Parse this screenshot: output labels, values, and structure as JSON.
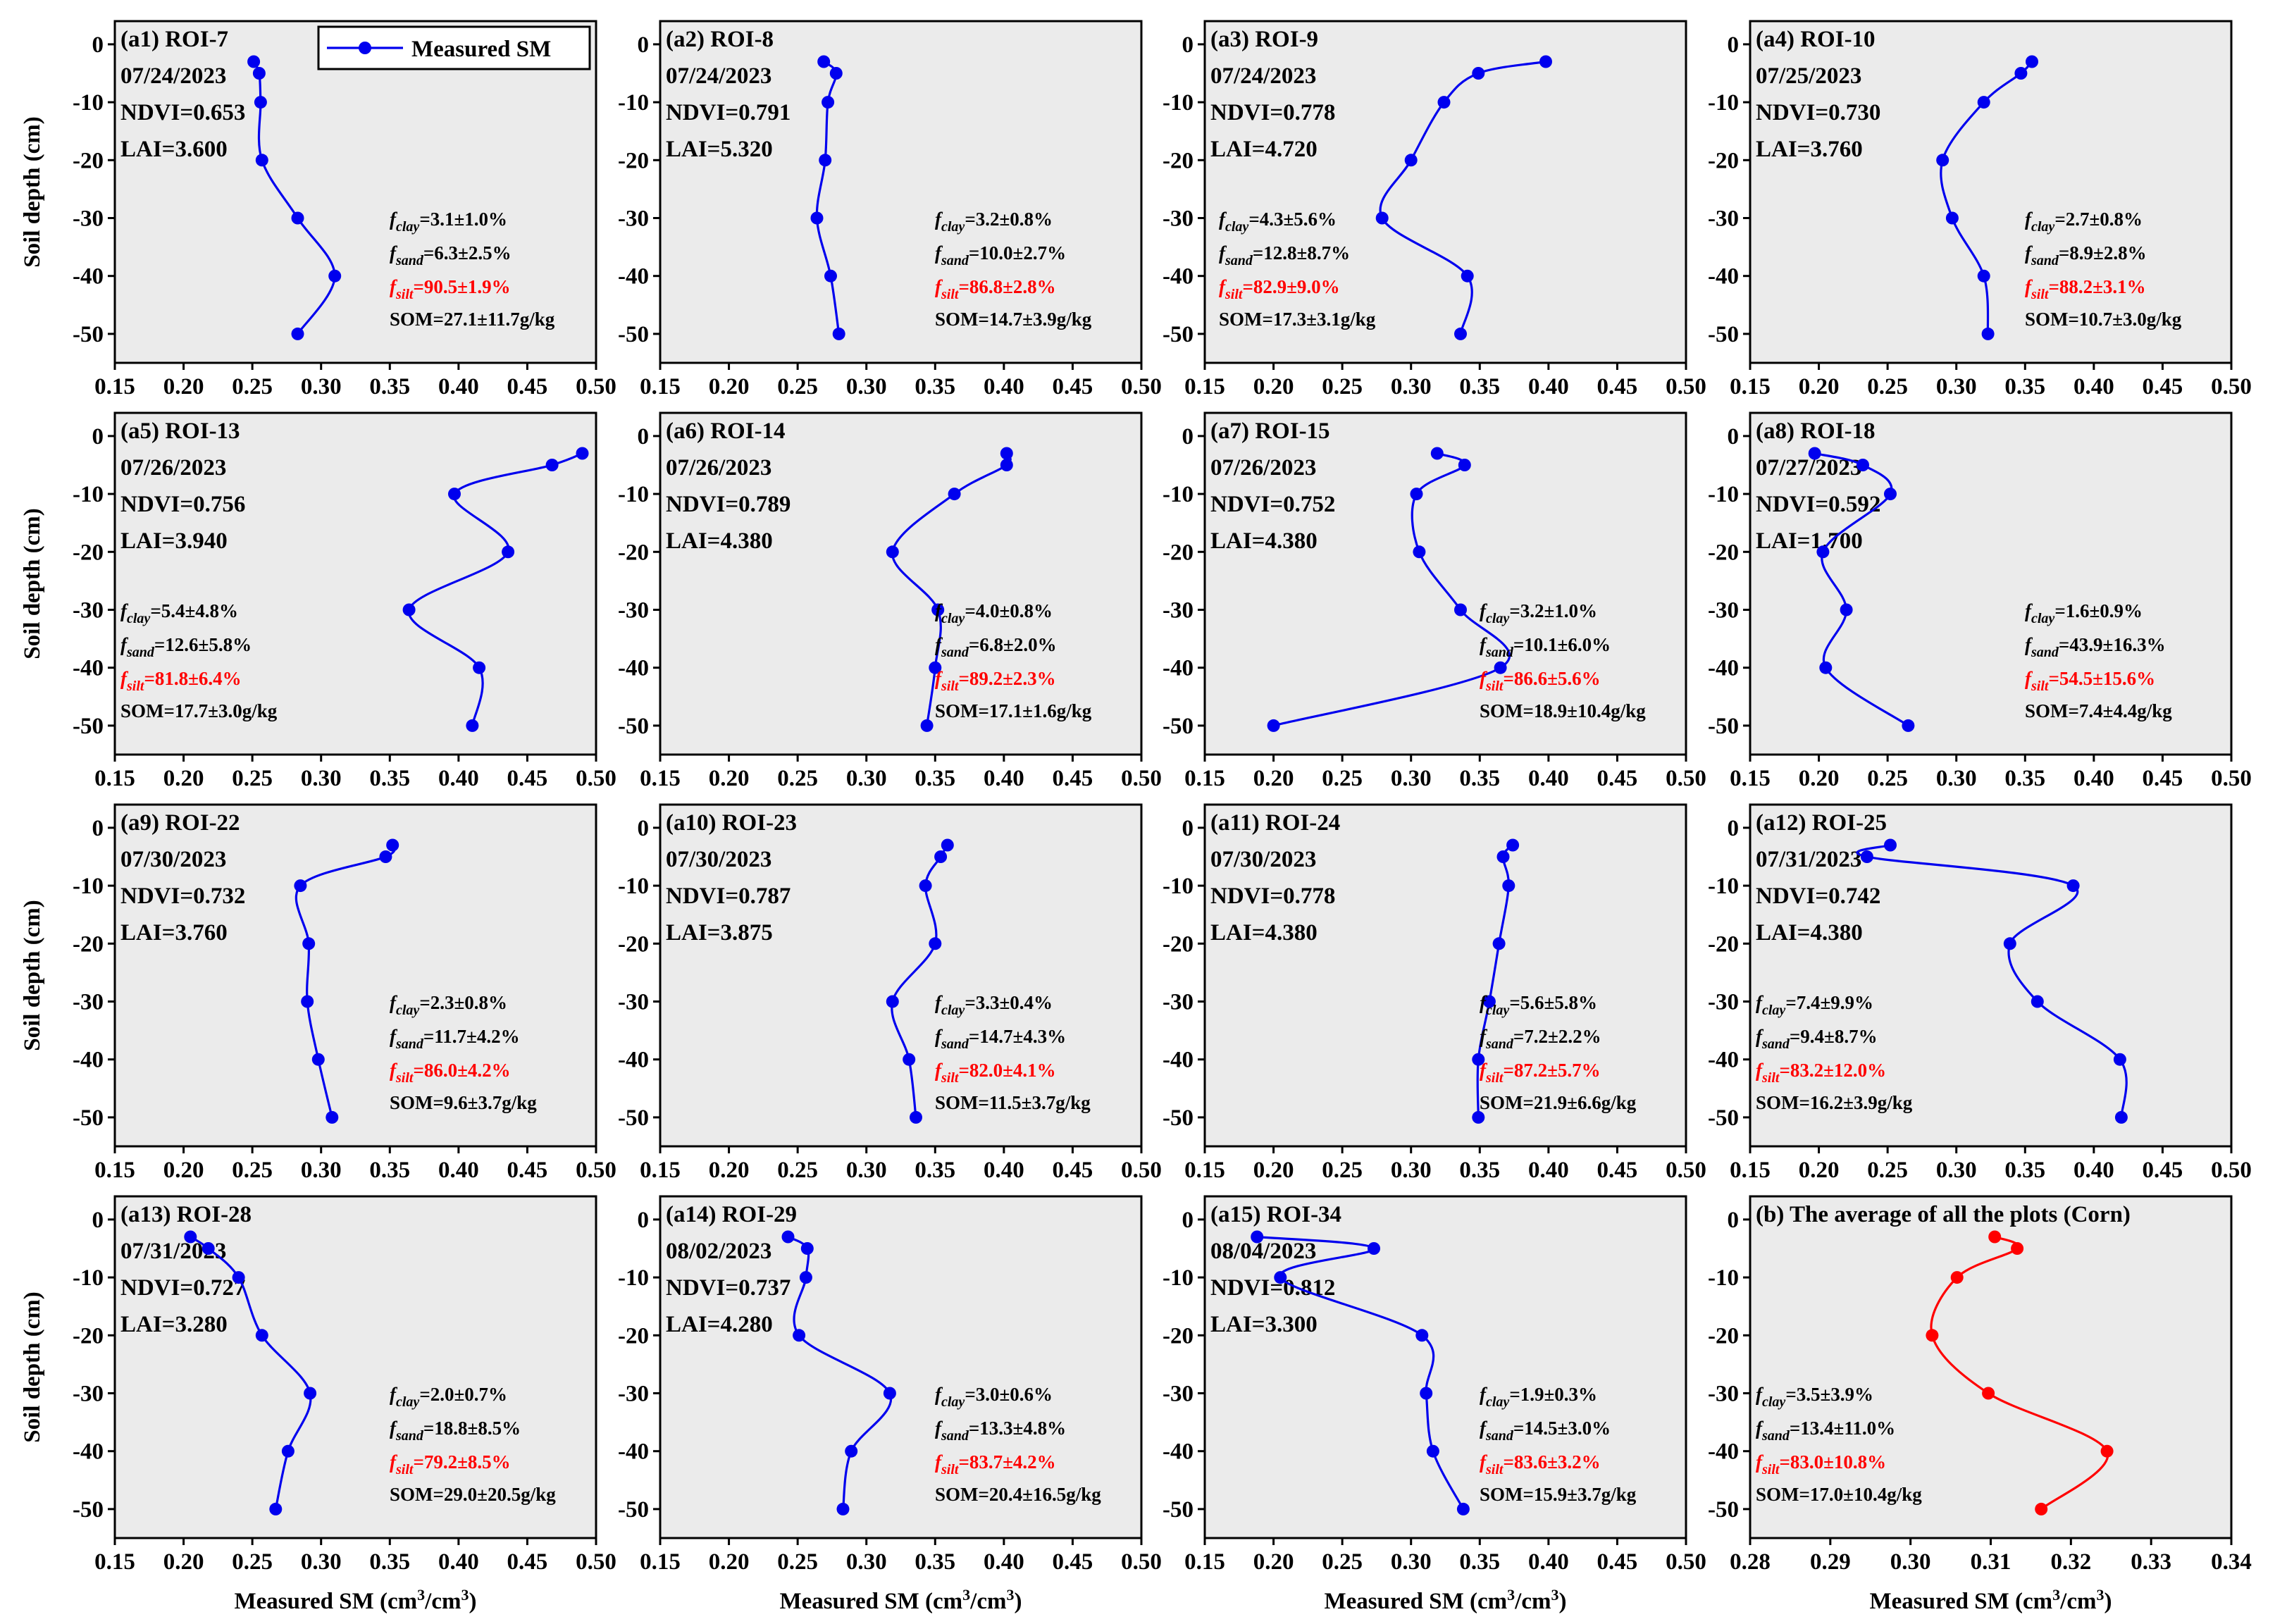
{
  "legend": {
    "label": "Measured SM"
  },
  "axis_labels": {
    "ylabel": "Soil depth (cm)",
    "xlabel_text": "Measured  SM (cm",
    "xlabel_sup1": "3",
    "xlabel_mid": "/cm",
    "xlabel_sup2": "3",
    "xlabel_end": ")"
  },
  "colors": {
    "series": "#0000ee",
    "average": "#ff0000",
    "frame": "#000000",
    "plot_bg": "#ebebeb",
    "highlight": "#ff0000"
  },
  "chart_data": [
    {
      "type": "line",
      "panel": "(a1) ROI-7",
      "date": "07/24/2023",
      "ndvi": "NDVI=0.653",
      "lai": "LAI=3.600",
      "xlim": [
        0.15,
        0.5
      ],
      "ylim": [
        -55,
        4
      ],
      "x_ticks": [
        "0.15",
        "0.20",
        "0.25",
        "0.30",
        "0.35",
        "0.40",
        "0.45",
        "0.50"
      ],
      "y_ticks": [
        "0",
        "-10",
        "-20",
        "-30",
        "-40",
        "-50"
      ],
      "ylabel": "Soil depth (cm)",
      "series": [
        {
          "name": "Measured SM",
          "x": [
            0.251,
            0.255,
            0.256,
            0.257,
            0.283,
            0.31,
            0.283
          ],
          "y": [
            -3,
            -5,
            -10,
            -20,
            -30,
            -40,
            -50
          ]
        }
      ],
      "clay": "=3.1±1.0%",
      "sand": "=6.3±2.5%",
      "silt": "=90.5±1.9%",
      "som": "SOM=27.1±11.7g/kg"
    },
    {
      "type": "line",
      "panel": "(a2) ROI-8",
      "date": "07/24/2023",
      "ndvi": "NDVI=0.791",
      "lai": "LAI=5.320",
      "xlim": [
        0.15,
        0.5
      ],
      "ylim": [
        -55,
        4
      ],
      "x_ticks": [
        "0.15",
        "0.20",
        "0.25",
        "0.30",
        "0.35",
        "0.40",
        "0.45",
        "0.50"
      ],
      "y_ticks": [
        "0",
        "-10",
        "-20",
        "-30",
        "-40",
        "-50"
      ],
      "series": [
        {
          "name": "Measured SM",
          "x": [
            0.269,
            0.278,
            0.272,
            0.27,
            0.264,
            0.274,
            0.28
          ],
          "y": [
            -3,
            -5,
            -10,
            -20,
            -30,
            -40,
            -50
          ]
        }
      ],
      "clay": "=3.2±0.8%",
      "sand": "=10.0±2.7%",
      "silt": "=86.8±2.8%",
      "som": "SOM=14.7±3.9g/kg"
    },
    {
      "type": "line",
      "panel": "(a3) ROI-9",
      "date": "07/24/2023",
      "ndvi": "NDVI=0.778",
      "lai": "LAI=4.720",
      "xlim": [
        0.15,
        0.5
      ],
      "ylim": [
        -55,
        4
      ],
      "x_ticks": [
        "0.15",
        "0.20",
        "0.25",
        "0.30",
        "0.35",
        "0.40",
        "0.45",
        "0.50"
      ],
      "y_ticks": [
        "0",
        "-10",
        "-20",
        "-30",
        "-40",
        "-50"
      ],
      "series": [
        {
          "name": "Measured SM",
          "x": [
            0.398,
            0.349,
            0.324,
            0.3,
            0.279,
            0.341,
            0.336
          ],
          "y": [
            -3,
            -5,
            -10,
            -20,
            -30,
            -40,
            -50
          ]
        }
      ],
      "clay": "=4.3±5.6%",
      "sand": "=12.8±8.7%",
      "silt": "=82.9±9.0%",
      "som": "SOM=17.3±3.1g/kg"
    },
    {
      "type": "line",
      "panel": "(a4) ROI-10",
      "date": "07/25/2023",
      "ndvi": "NDVI=0.730",
      "lai": "LAI=3.760",
      "xlim": [
        0.15,
        0.5
      ],
      "ylim": [
        -55,
        4
      ],
      "x_ticks": [
        "0.15",
        "0.20",
        "0.25",
        "0.30",
        "0.35",
        "0.40",
        "0.45",
        "0.50"
      ],
      "y_ticks": [
        "0",
        "-10",
        "-20",
        "-30",
        "-40",
        "-50"
      ],
      "series": [
        {
          "name": "Measured SM",
          "x": [
            0.355,
            0.347,
            0.32,
            0.29,
            0.297,
            0.32,
            0.323
          ],
          "y": [
            -3,
            -5,
            -10,
            -20,
            -30,
            -40,
            -50
          ]
        }
      ],
      "clay": "=2.7±0.8%",
      "sand": "=8.9±2.8%",
      "silt": "=88.2±3.1%",
      "som": "SOM=10.7±3.0g/kg"
    },
    {
      "type": "line",
      "panel": "(a5) ROI-13",
      "date": "07/26/2023",
      "ndvi": "NDVI=0.756",
      "lai": "LAI=3.940",
      "xlim": [
        0.15,
        0.5
      ],
      "ylim": [
        -55,
        4
      ],
      "x_ticks": [
        "0.15",
        "0.20",
        "0.25",
        "0.30",
        "0.35",
        "0.40",
        "0.45",
        "0.50"
      ],
      "y_ticks": [
        "0",
        "-10",
        "-20",
        "-30",
        "-40",
        "-50"
      ],
      "ylabel": "Soil depth (cm)",
      "series": [
        {
          "name": "Measured SM",
          "x": [
            0.49,
            0.468,
            0.397,
            0.436,
            0.364,
            0.415,
            0.41
          ],
          "y": [
            -3,
            -5,
            -10,
            -20,
            -30,
            -40,
            -50
          ]
        }
      ],
      "clay": "=5.4±4.8%",
      "sand": "=12.6±5.8%",
      "silt": "=81.8±6.4%",
      "som": "SOM=17.7±3.0g/kg"
    },
    {
      "type": "line",
      "panel": "(a6) ROI-14",
      "date": "07/26/2023",
      "ndvi": "NDVI=0.789",
      "lai": "LAI=4.380",
      "xlim": [
        0.15,
        0.5
      ],
      "ylim": [
        -55,
        4
      ],
      "x_ticks": [
        "0.15",
        "0.20",
        "0.25",
        "0.30",
        "0.35",
        "0.40",
        "0.45",
        "0.50"
      ],
      "y_ticks": [
        "0",
        "-10",
        "-20",
        "-30",
        "-40",
        "-50"
      ],
      "series": [
        {
          "name": "Measured SM",
          "x": [
            0.402,
            0.402,
            0.364,
            0.319,
            0.352,
            0.35,
            0.344
          ],
          "y": [
            -3,
            -5,
            -10,
            -20,
            -30,
            -40,
            -50
          ]
        }
      ],
      "clay": "=4.0±0.8%",
      "sand": "=6.8±2.0%",
      "silt": "=89.2±2.3%",
      "som": "SOM=17.1±1.6g/kg"
    },
    {
      "type": "line",
      "panel": "(a7) ROI-15",
      "date": "07/26/2023",
      "ndvi": "NDVI=0.752",
      "lai": "LAI=4.380",
      "xlim": [
        0.15,
        0.5
      ],
      "ylim": [
        -55,
        4
      ],
      "x_ticks": [
        "0.15",
        "0.20",
        "0.25",
        "0.30",
        "0.35",
        "0.40",
        "0.45",
        "0.50"
      ],
      "y_ticks": [
        "0",
        "-10",
        "-20",
        "-30",
        "-40",
        "-50"
      ],
      "series": [
        {
          "name": "Measured SM",
          "x": [
            0.319,
            0.339,
            0.304,
            0.306,
            0.336,
            0.365,
            0.2
          ],
          "y": [
            -3,
            -5,
            -10,
            -20,
            -30,
            -40,
            -50
          ]
        }
      ],
      "clay": "=3.2±1.0%",
      "sand": "=10.1±6.0%",
      "silt": "=86.6±5.6%",
      "som": "SOM=18.9±10.4g/kg"
    },
    {
      "type": "line",
      "panel": "(a8) ROI-18",
      "date": "07/27/2023",
      "ndvi": "NDVI=0.592",
      "lai": "LAI=1.700",
      "xlim": [
        0.15,
        0.5
      ],
      "ylim": [
        -55,
        4
      ],
      "x_ticks": [
        "0.15",
        "0.20",
        "0.25",
        "0.30",
        "0.35",
        "0.40",
        "0.45",
        "0.50"
      ],
      "y_ticks": [
        "0",
        "-10",
        "-20",
        "-30",
        "-40",
        "-50"
      ],
      "series": [
        {
          "name": "Measured SM",
          "x": [
            0.197,
            0.232,
            0.252,
            0.203,
            0.22,
            0.205,
            0.265
          ],
          "y": [
            -3,
            -5,
            -10,
            -20,
            -30,
            -40,
            -50
          ]
        }
      ],
      "clay": "=1.6±0.9%",
      "sand": "=43.9±16.3%",
      "silt": "=54.5±15.6%",
      "som": "SOM=7.4±4.4g/kg"
    },
    {
      "type": "line",
      "panel": "(a9) ROI-22",
      "date": "07/30/2023",
      "ndvi": "NDVI=0.732",
      "lai": "LAI=3.760",
      "xlim": [
        0.15,
        0.5
      ],
      "ylim": [
        -55,
        4
      ],
      "x_ticks": [
        "0.15",
        "0.20",
        "0.25",
        "0.30",
        "0.35",
        "0.40",
        "0.45",
        "0.50"
      ],
      "y_ticks": [
        "0",
        "-10",
        "-20",
        "-30",
        "-40",
        "-50"
      ],
      "ylabel": "Soil depth (cm)",
      "series": [
        {
          "name": "Measured SM",
          "x": [
            0.352,
            0.347,
            0.285,
            0.291,
            0.29,
            0.298,
            0.308
          ],
          "y": [
            -3,
            -5,
            -10,
            -20,
            -30,
            -40,
            -50
          ]
        }
      ],
      "clay": "=2.3±0.8%",
      "sand": "=11.7±4.2%",
      "silt": "=86.0±4.2%",
      "som": "SOM=9.6±3.7g/kg"
    },
    {
      "type": "line",
      "panel": "(a10) ROI-23",
      "date": "07/30/2023",
      "ndvi": "NDVI=0.787",
      "lai": "LAI=3.875",
      "xlim": [
        0.15,
        0.5
      ],
      "ylim": [
        -55,
        4
      ],
      "x_ticks": [
        "0.15",
        "0.20",
        "0.25",
        "0.30",
        "0.35",
        "0.40",
        "0.45",
        "0.50"
      ],
      "y_ticks": [
        "0",
        "-10",
        "-20",
        "-30",
        "-40",
        "-50"
      ],
      "series": [
        {
          "name": "Measured SM",
          "x": [
            0.359,
            0.354,
            0.343,
            0.35,
            0.319,
            0.331,
            0.336
          ],
          "y": [
            -3,
            -5,
            -10,
            -20,
            -30,
            -40,
            -50
          ]
        }
      ],
      "clay": "=3.3±0.4%",
      "sand": "=14.7±4.3%",
      "silt": "=82.0±4.1%",
      "som": "SOM=11.5±3.7g/kg"
    },
    {
      "type": "line",
      "panel": "(a11) ROI-24",
      "date": "07/30/2023",
      "ndvi": "NDVI=0.778",
      "lai": "LAI=4.380",
      "xlim": [
        0.15,
        0.5
      ],
      "ylim": [
        -55,
        4
      ],
      "x_ticks": [
        "0.15",
        "0.20",
        "0.25",
        "0.30",
        "0.35",
        "0.40",
        "0.45",
        "0.50"
      ],
      "y_ticks": [
        "0",
        "-10",
        "-20",
        "-30",
        "-40",
        "-50"
      ],
      "series": [
        {
          "name": "Measured SM",
          "x": [
            0.374,
            0.367,
            0.371,
            0.364,
            0.357,
            0.349,
            0.349
          ],
          "y": [
            -3,
            -5,
            -10,
            -20,
            -30,
            -40,
            -50
          ]
        }
      ],
      "clay": "=5.6±5.8%",
      "sand": "=7.2±2.2%",
      "silt": "=87.2±5.7%",
      "som": "SOM=21.9±6.6g/kg"
    },
    {
      "type": "line",
      "panel": "(a12) ROI-25",
      "date": "07/31/2023",
      "ndvi": "NDVI=0.742",
      "lai": "LAI=4.380",
      "xlim": [
        0.15,
        0.5
      ],
      "ylim": [
        -55,
        4
      ],
      "x_ticks": [
        "0.15",
        "0.20",
        "0.25",
        "0.30",
        "0.35",
        "0.40",
        "0.45",
        "0.50"
      ],
      "y_ticks": [
        "0",
        "-10",
        "-20",
        "-30",
        "-40",
        "-50"
      ],
      "series": [
        {
          "name": "Measured SM",
          "x": [
            0.252,
            0.235,
            0.385,
            0.339,
            0.359,
            0.419,
            0.42
          ],
          "y": [
            -3,
            -5,
            -10,
            -20,
            -30,
            -40,
            -50
          ]
        }
      ],
      "clay": "=7.4±9.9%",
      "sand": "=9.4±8.7%",
      "silt": "=83.2±12.0%",
      "som": "SOM=16.2±3.9g/kg"
    },
    {
      "type": "line",
      "panel": "(a13) ROI-28",
      "date": "07/31/2023",
      "ndvi": "NDVI=0.727",
      "lai": "LAI=3.280",
      "xlim": [
        0.15,
        0.5
      ],
      "ylim": [
        -55,
        4
      ],
      "x_ticks": [
        "0.15",
        "0.20",
        "0.25",
        "0.30",
        "0.35",
        "0.40",
        "0.45",
        "0.50"
      ],
      "y_ticks": [
        "0",
        "-10",
        "-20",
        "-30",
        "-40",
        "-50"
      ],
      "ylabel": "Soil depth (cm)",
      "series": [
        {
          "name": "Measured SM",
          "x": [
            0.205,
            0.218,
            0.24,
            0.257,
            0.292,
            0.276,
            0.267
          ],
          "y": [
            -3,
            -5,
            -10,
            -20,
            -30,
            -40,
            -50
          ]
        }
      ],
      "clay": "=2.0±0.7%",
      "sand": "=18.8±8.5%",
      "silt": "=79.2±8.5%",
      "som": "SOM=29.0±20.5g/kg"
    },
    {
      "type": "line",
      "panel": "(a14) ROI-29",
      "date": "08/02/2023",
      "ndvi": "NDVI=0.737",
      "lai": "LAI=4.280",
      "xlim": [
        0.15,
        0.5
      ],
      "ylim": [
        -55,
        4
      ],
      "x_ticks": [
        "0.15",
        "0.20",
        "0.25",
        "0.30",
        "0.35",
        "0.40",
        "0.45",
        "0.50"
      ],
      "y_ticks": [
        "0",
        "-10",
        "-20",
        "-30",
        "-40",
        "-50"
      ],
      "series": [
        {
          "name": "Measured SM",
          "x": [
            0.243,
            0.257,
            0.256,
            0.251,
            0.317,
            0.289,
            0.283
          ],
          "y": [
            -3,
            -5,
            -10,
            -20,
            -30,
            -40,
            -50
          ]
        }
      ],
      "clay": "=3.0±0.6%",
      "sand": "=13.3±4.8%",
      "silt": "=83.7±4.2%",
      "som": "SOM=20.4±16.5g/kg"
    },
    {
      "type": "line",
      "panel": "(a15) ROI-34",
      "date": "08/04/2023",
      "ndvi": "NDVI=0.812",
      "lai": "LAI=3.300",
      "xlim": [
        0.15,
        0.5
      ],
      "ylim": [
        -55,
        4
      ],
      "x_ticks": [
        "0.15",
        "0.20",
        "0.25",
        "0.30",
        "0.35",
        "0.40",
        "0.45",
        "0.50"
      ],
      "y_ticks": [
        "0",
        "-10",
        "-20",
        "-30",
        "-40",
        "-50"
      ],
      "series": [
        {
          "name": "Measured SM",
          "x": [
            0.188,
            0.273,
            0.205,
            0.308,
            0.311,
            0.316,
            0.338
          ],
          "y": [
            -3,
            -5,
            -10,
            -20,
            -30,
            -40,
            -50
          ]
        }
      ],
      "clay": "=1.9±0.3%",
      "sand": "=14.5±3.0%",
      "silt": "=83.6±3.2%",
      "som": "SOM=15.9±3.7g/kg"
    },
    {
      "type": "line",
      "panel": "(b) The average of all the plots (Corn)",
      "xlim": [
        0.28,
        0.34
      ],
      "ylim": [
        -55,
        4
      ],
      "x_ticks": [
        "0.28",
        "0.29",
        "0.30",
        "0.31",
        "0.32",
        "0.33",
        "0.34"
      ],
      "y_ticks": [
        "0",
        "-10",
        "-20",
        "-30",
        "-40",
        "-50"
      ],
      "series": [
        {
          "x": [
            0.3105,
            0.3133,
            0.3058,
            0.3027,
            0.3097,
            0.3245,
            0.3163
          ],
          "y": [
            -3,
            -5,
            -10,
            -20,
            -30,
            -40,
            -50
          ]
        }
      ],
      "clay": "=3.5±3.9%",
      "sand": "=13.4±11.0%",
      "silt": "=83.0±10.8%",
      "som": "SOM=17.0±10.4g/kg"
    }
  ]
}
